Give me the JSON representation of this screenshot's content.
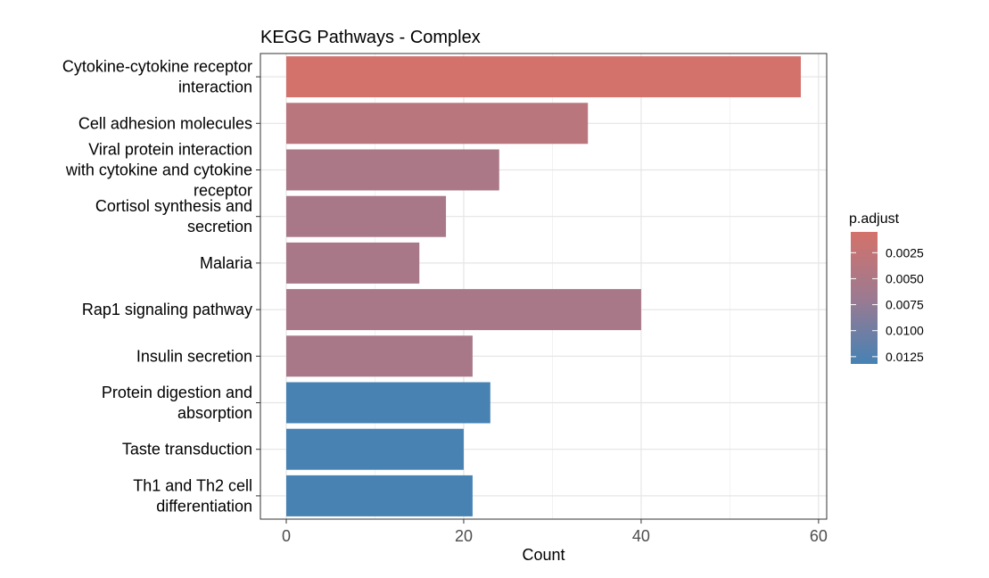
{
  "chart_data": {
    "type": "bar",
    "orientation": "horizontal",
    "title": "KEGG Pathways - Complex",
    "xlabel": "Count",
    "ylabel": "",
    "xlim": [
      0,
      60
    ],
    "xticks": [
      0,
      20,
      40,
      60
    ],
    "grid": true,
    "legend_position": "right",
    "categories": [
      "Cytokine-cytokine receptor interaction",
      "Cell adhesion molecules",
      "Viral protein interaction with cytokine and cytokine receptor",
      "Cortisol synthesis and secretion",
      "Malaria",
      "Rap1 signaling pathway",
      "Insulin secretion",
      "Protein digestion and absorption",
      "Taste transduction",
      "Th1 and Th2 cell differentiation"
    ],
    "category_label_lines": [
      [
        "Cytokine-cytokine receptor",
        "interaction"
      ],
      [
        "Cell adhesion molecules"
      ],
      [
        "Viral protein interaction",
        "with cytokine and cytokine",
        "receptor"
      ],
      [
        "Cortisol synthesis and",
        "secretion"
      ],
      [
        "Malaria"
      ],
      [
        "Rap1 signaling pathway"
      ],
      [
        "Insulin secretion"
      ],
      [
        "Protein digestion and",
        "absorption"
      ],
      [
        "Taste transduction"
      ],
      [
        "Th1 and Th2 cell",
        "differentiation"
      ]
    ],
    "values": [
      58,
      34,
      24,
      18,
      15,
      40,
      21,
      23,
      20,
      21
    ],
    "p_adjust": [
      0.0006,
      0.0036,
      0.0052,
      0.0054,
      0.0055,
      0.0054,
      0.0055,
      0.0131,
      0.0131,
      0.0131
    ],
    "colorbar": {
      "title": "p.adjust",
      "range": [
        0.0005,
        0.0132
      ],
      "ticks": [
        0.0025,
        0.005,
        0.0075,
        0.01,
        0.0125
      ],
      "tick_labels": [
        "0.0025",
        "0.0050",
        "0.0075",
        "0.0100",
        "0.0125"
      ],
      "low_color": "#D4726A",
      "high_color": "#4682B4"
    }
  }
}
